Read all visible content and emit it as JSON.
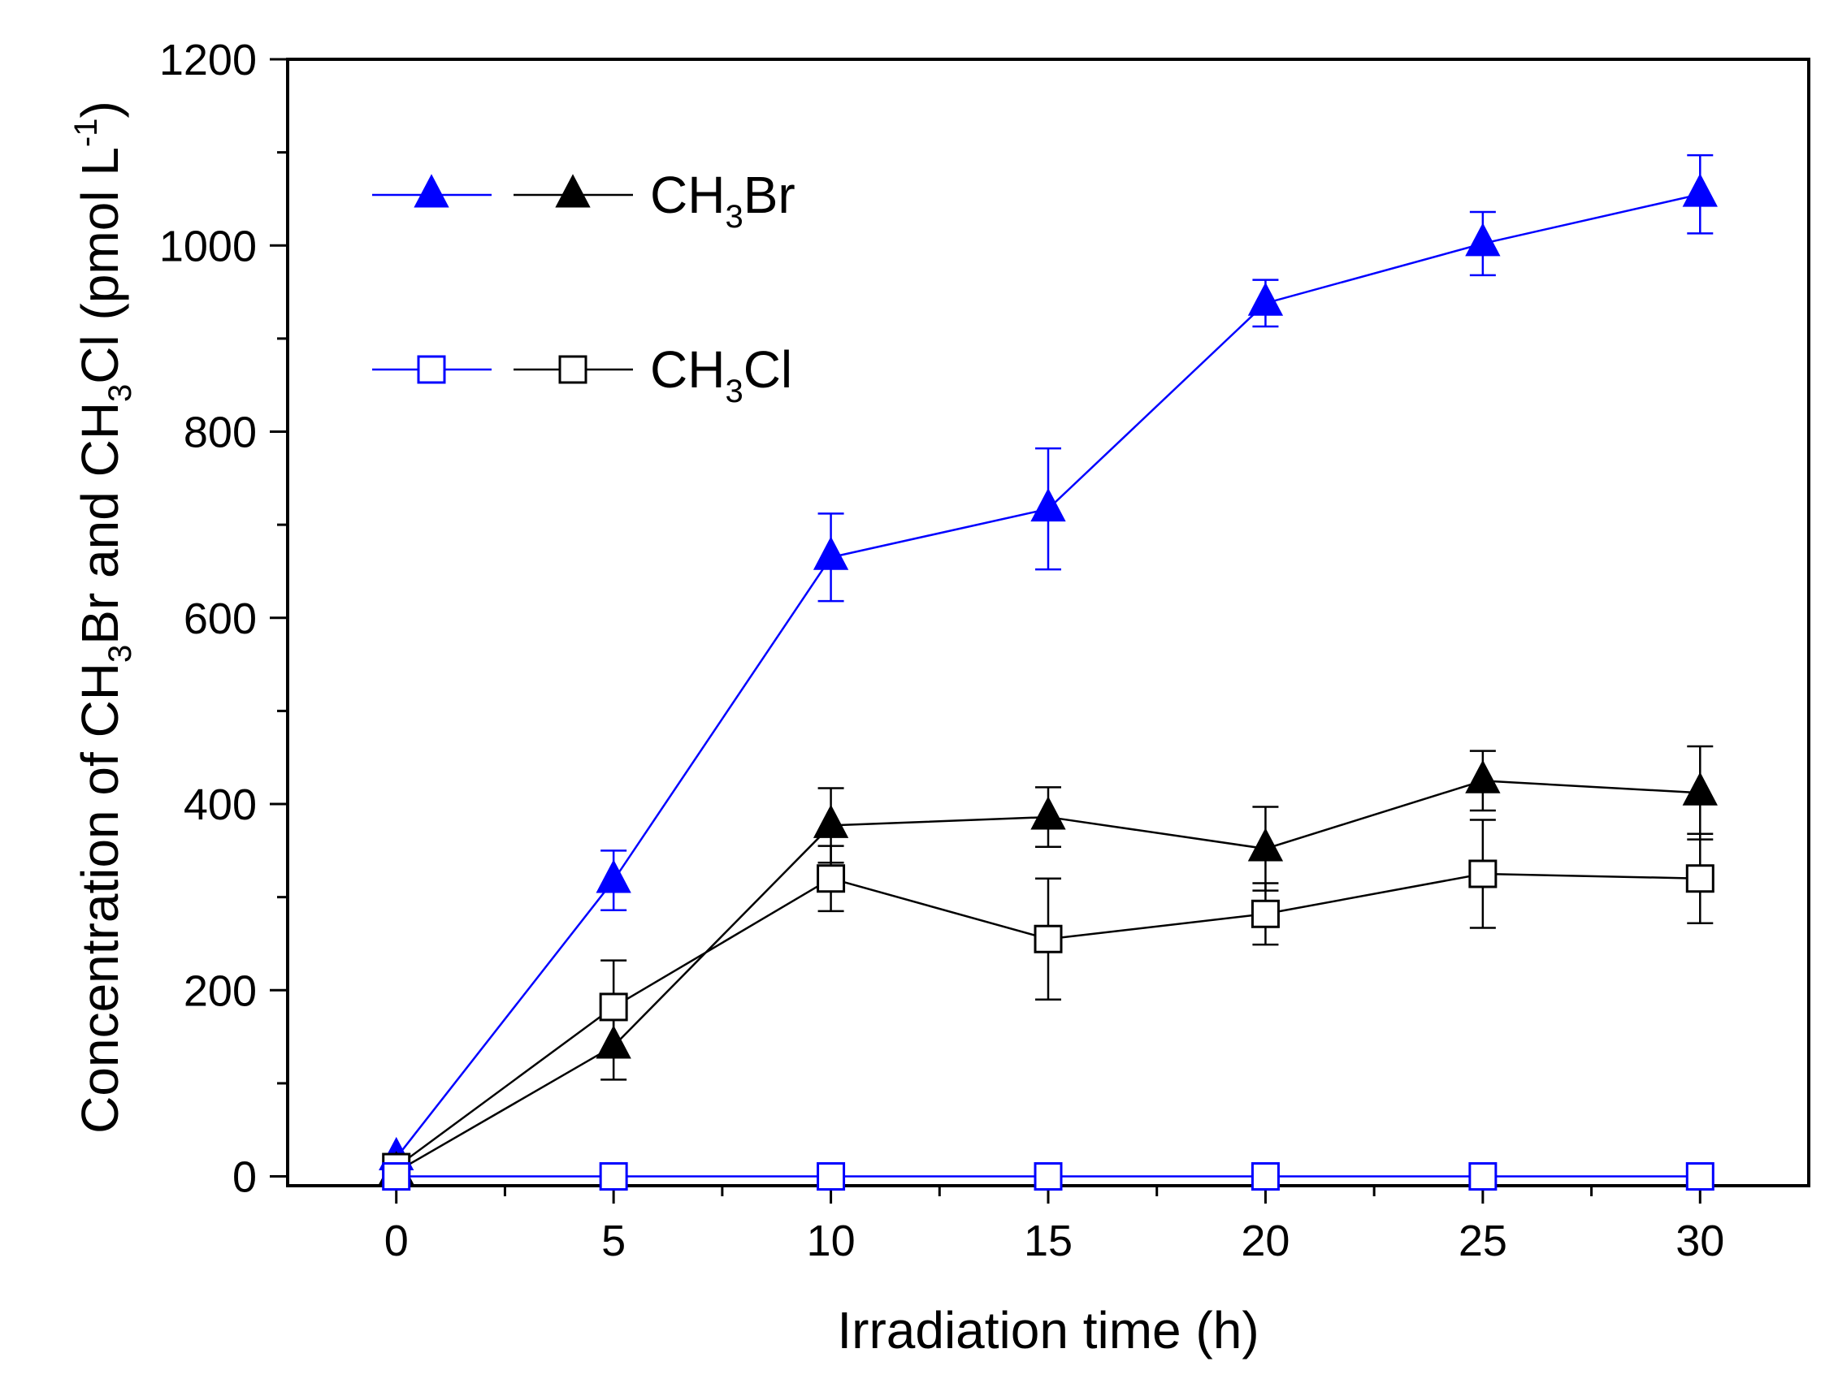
{
  "chart_data": {
    "type": "line",
    "xlabel": "Irradiation time (h)",
    "ylabel": {
      "parts": [
        "Concentration of CH",
        "3",
        "Br and CH",
        "3",
        "Cl (pmol L",
        "-1",
        ")"
      ]
    },
    "xlim": [
      -2.5,
      32.5
    ],
    "ylim": [
      -10,
      1200
    ],
    "x_ticks": [
      0,
      5,
      10,
      15,
      20,
      25,
      30
    ],
    "x_tick_labels": [
      "0",
      "5",
      "10",
      "15",
      "20",
      "25",
      "30"
    ],
    "y_ticks": [
      0,
      200,
      400,
      600,
      800,
      1000,
      1200
    ],
    "y_tick_labels": [
      "0",
      "200",
      "400",
      "600",
      "800",
      "1000",
      "1200"
    ],
    "x_minor_ticks": [
      2.5,
      7.5,
      12.5,
      17.5,
      22.5,
      27.5
    ],
    "y_minor_ticks": [
      100,
      300,
      500,
      700,
      900,
      1100
    ],
    "grid": false,
    "legend_position": "top-left",
    "legend": [
      {
        "label_main": "CH",
        "label_sub": "3",
        "label_end": "Br",
        "marker": "triangle",
        "series": [
          "blue-triangle",
          "black-triangle"
        ]
      },
      {
        "label_main": "CH",
        "label_sub": "3",
        "label_end": "Cl",
        "marker": "square",
        "series": [
          "blue-square",
          "black-square"
        ]
      }
    ],
    "series": [
      {
        "id": "blue-triangle",
        "color": "#0000ff",
        "marker": "triangle",
        "filled": true,
        "x": [
          0,
          5,
          10,
          15,
          20,
          25,
          30
        ],
        "y": [
          20,
          318,
          665,
          717,
          938,
          1002,
          1055
        ],
        "err": [
          0,
          32,
          47,
          65,
          25,
          34,
          42
        ]
      },
      {
        "id": "black-triangle",
        "color": "#000000",
        "marker": "triangle",
        "filled": true,
        "x": [
          0,
          5,
          10,
          15,
          20,
          25,
          30
        ],
        "y": [
          5,
          140,
          377,
          386,
          352,
          425,
          412
        ],
        "err": [
          0,
          36,
          40,
          32,
          45,
          32,
          50
        ]
      },
      {
        "id": "black-square",
        "color": "#000000",
        "marker": "square",
        "filled": false,
        "x": [
          0,
          5,
          10,
          15,
          20,
          25,
          30
        ],
        "y": [
          10,
          182,
          320,
          255,
          282,
          325,
          320
        ],
        "err": [
          0,
          50,
          35,
          65,
          33,
          58,
          48
        ]
      },
      {
        "id": "blue-square",
        "color": "#0000ff",
        "marker": "square",
        "filled": false,
        "x": [
          0,
          5,
          10,
          15,
          20,
          25,
          30
        ],
        "y": [
          0,
          0,
          0,
          0,
          0,
          0,
          0
        ],
        "err": [
          0,
          0,
          0,
          0,
          0,
          0,
          0
        ]
      }
    ]
  }
}
